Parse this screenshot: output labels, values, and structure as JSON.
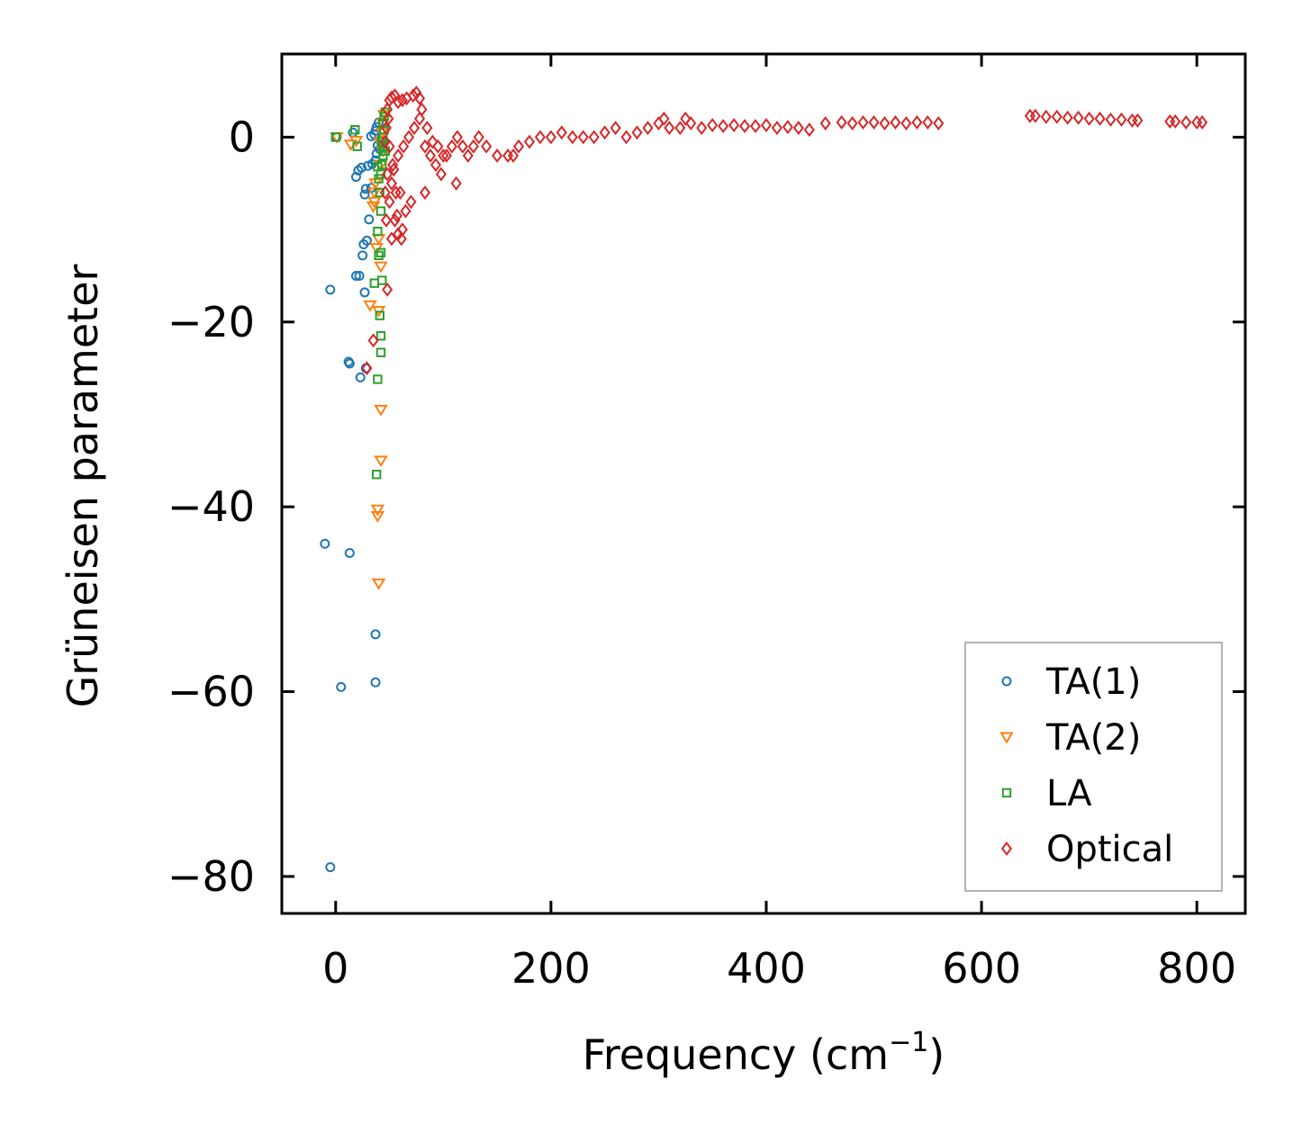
{
  "chart_data": {
    "type": "scatter",
    "title": "",
    "xlabel": "Frequency (cm",
    "xlabel_sup": "−1",
    "xlabel_suffix": ")",
    "ylabel": "Grüneisen parameter",
    "xlim": [
      -50,
      845
    ],
    "ylim": [
      -84,
      9
    ],
    "xticks": [
      0,
      200,
      400,
      600,
      800
    ],
    "xtick_labels": [
      "0",
      "200",
      "400",
      "600",
      "800"
    ],
    "yticks": [
      0,
      -20,
      -40,
      -60,
      -80
    ],
    "ytick_labels": [
      "0",
      "−20",
      "−40",
      "−60",
      "−80"
    ],
    "grid": false,
    "legend_position": "lower-right",
    "series": [
      {
        "name": "TA(1)",
        "marker": "circle",
        "color": "#1f77b4",
        "points": [
          [
            -5,
            -79
          ],
          [
            -10,
            -44
          ],
          [
            5,
            -59.5
          ],
          [
            37,
            -59
          ],
          [
            37,
            -53.8
          ],
          [
            13,
            -45
          ],
          [
            -5,
            -16.5
          ],
          [
            13,
            -24.5
          ],
          [
            12,
            -24.3
          ],
          [
            23,
            -26
          ],
          [
            28,
            -25
          ],
          [
            27,
            -16.8
          ],
          [
            19,
            -15
          ],
          [
            22,
            -15
          ],
          [
            25,
            -12.8
          ],
          [
            26,
            -11.6
          ],
          [
            29,
            -11.2
          ],
          [
            31,
            -8.9
          ],
          [
            27,
            -6.2
          ],
          [
            28,
            -5.6
          ],
          [
            33,
            -5.5
          ],
          [
            19,
            -4.3
          ],
          [
            21,
            -3.6
          ],
          [
            24,
            -3.3
          ],
          [
            30,
            -3.1
          ],
          [
            34,
            -2.9
          ],
          [
            37,
            -2.5
          ],
          [
            38,
            -1.8
          ],
          [
            39,
            -0.9
          ],
          [
            33,
            0.1
          ],
          [
            36,
            0.3
          ],
          [
            37,
            0.7
          ],
          [
            38,
            1.1
          ],
          [
            40,
            1.6
          ],
          [
            16,
            0.5
          ],
          [
            1,
            0
          ],
          [
            42,
            -0.5
          ],
          [
            41,
            -1.3
          ]
        ]
      },
      {
        "name": "TA(2)",
        "marker": "triangle-down",
        "color": "#ff7f0e",
        "points": [
          [
            1,
            0
          ],
          [
            14,
            -0.8
          ],
          [
            19,
            -0.4
          ],
          [
            35,
            -7.5
          ],
          [
            36,
            -7
          ],
          [
            32,
            -18.2
          ],
          [
            40,
            -18.8
          ],
          [
            39,
            -40.3
          ],
          [
            39,
            -41
          ],
          [
            40,
            -48.3
          ],
          [
            42,
            -29.5
          ],
          [
            42,
            -35
          ],
          [
            42,
            -14
          ],
          [
            40,
            -11
          ],
          [
            38,
            -12
          ],
          [
            36,
            -6
          ],
          [
            42,
            -3
          ],
          [
            44,
            -1.5
          ],
          [
            41,
            -0.5
          ],
          [
            43,
            0.5
          ],
          [
            44,
            1.5
          ],
          [
            45,
            2.4
          ],
          [
            37,
            -5
          ]
        ]
      },
      {
        "name": "LA",
        "marker": "square",
        "color": "#2ca02c",
        "points": [
          [
            0,
            0
          ],
          [
            18,
            0.8
          ],
          [
            20,
            -1
          ],
          [
            38,
            -36.5
          ],
          [
            39,
            -26.2
          ],
          [
            42,
            -23.3
          ],
          [
            42,
            -21.5
          ],
          [
            41,
            -19.3
          ],
          [
            36,
            -15.8
          ],
          [
            43,
            -15.5
          ],
          [
            40,
            -12.8
          ],
          [
            42,
            -12.5
          ],
          [
            39,
            -10.2
          ],
          [
            42,
            -8
          ],
          [
            41,
            -6
          ],
          [
            42,
            -4
          ],
          [
            43,
            -3
          ],
          [
            44,
            -2
          ],
          [
            44,
            -1
          ],
          [
            44,
            0
          ],
          [
            45,
            0.8
          ],
          [
            44,
            1.5
          ],
          [
            45,
            2.2
          ],
          [
            46,
            2.7
          ],
          [
            43,
            -0.5
          ],
          [
            46,
            -1.5
          ],
          [
            40,
            -4.5
          ],
          [
            39,
            -3.2
          ]
        ]
      },
      {
        "name": "Optical",
        "marker": "diamond",
        "color": "#d62728",
        "points": [
          [
            35,
            -22
          ],
          [
            29,
            -25
          ],
          [
            48,
            -16.5
          ],
          [
            52,
            -11
          ],
          [
            58,
            -10.5
          ],
          [
            62,
            -10
          ],
          [
            65,
            -8
          ],
          [
            70,
            -7
          ],
          [
            47,
            -9
          ],
          [
            55,
            -9
          ],
          [
            50,
            -7
          ],
          [
            60,
            -6
          ],
          [
            83,
            -6
          ],
          [
            112,
            -5
          ],
          [
            48,
            -4
          ],
          [
            53,
            -3
          ],
          [
            58,
            -2
          ],
          [
            63,
            -1
          ],
          [
            68,
            0
          ],
          [
            73,
            1
          ],
          [
            78,
            2
          ],
          [
            83,
            -1
          ],
          [
            88,
            -2
          ],
          [
            93,
            -3
          ],
          [
            98,
            -4
          ],
          [
            103,
            -2
          ],
          [
            108,
            -1
          ],
          [
            113,
            0
          ],
          [
            118,
            -1
          ],
          [
            123,
            -2
          ],
          [
            128,
            -1
          ],
          [
            133,
            0
          ],
          [
            140,
            -1
          ],
          [
            150,
            -2
          ],
          [
            160,
            -2
          ],
          [
            165,
            -2
          ],
          [
            170,
            -1
          ],
          [
            180,
            -0.5
          ],
          [
            190,
            0
          ],
          [
            200,
            0
          ],
          [
            210,
            0.5
          ],
          [
            220,
            0
          ],
          [
            230,
            0
          ],
          [
            240,
            0
          ],
          [
            250,
            0.5
          ],
          [
            260,
            1
          ],
          [
            270,
            0
          ],
          [
            280,
            0.5
          ],
          [
            290,
            1
          ],
          [
            300,
            1.5
          ],
          [
            305,
            2
          ],
          [
            310,
            1
          ],
          [
            320,
            1
          ],
          [
            325,
            2
          ],
          [
            330,
            1.5
          ],
          [
            340,
            1
          ],
          [
            350,
            1.3
          ],
          [
            360,
            1.2
          ],
          [
            370,
            1.3
          ],
          [
            380,
            1.2
          ],
          [
            390,
            1.2
          ],
          [
            400,
            1.3
          ],
          [
            410,
            1
          ],
          [
            420,
            1.1
          ],
          [
            430,
            1
          ],
          [
            440,
            0.8
          ],
          [
            455,
            1.5
          ],
          [
            470,
            1.6
          ],
          [
            480,
            1.5
          ],
          [
            490,
            1.6
          ],
          [
            500,
            1.6
          ],
          [
            510,
            1.5
          ],
          [
            520,
            1.6
          ],
          [
            530,
            1.5
          ],
          [
            540,
            1.6
          ],
          [
            550,
            1.6
          ],
          [
            560,
            1.5
          ],
          [
            645,
            2.3
          ],
          [
            650,
            2.3
          ],
          [
            660,
            2.2
          ],
          [
            670,
            2.2
          ],
          [
            680,
            2.1
          ],
          [
            690,
            2.1
          ],
          [
            700,
            2
          ],
          [
            710,
            2
          ],
          [
            720,
            1.9
          ],
          [
            730,
            1.9
          ],
          [
            740,
            1.8
          ],
          [
            745,
            1.8
          ],
          [
            775,
            1.7
          ],
          [
            780,
            1.7
          ],
          [
            790,
            1.6
          ],
          [
            800,
            1.6
          ],
          [
            805,
            1.6
          ],
          [
            48,
            3
          ],
          [
            50,
            4
          ],
          [
            52,
            4.3
          ],
          [
            55,
            4.5
          ],
          [
            58,
            3.8
          ],
          [
            62,
            4
          ],
          [
            66,
            4.2
          ],
          [
            72,
            4.5
          ],
          [
            75,
            4.8
          ],
          [
            78,
            4.2
          ],
          [
            80,
            3
          ],
          [
            85,
            1
          ],
          [
            90,
            -0.5
          ],
          [
            95,
            -1
          ],
          [
            100,
            -2
          ],
          [
            46,
            -6
          ],
          [
            52,
            -5
          ],
          [
            56,
            -6
          ],
          [
            46,
            -0.5
          ],
          [
            47,
            1
          ],
          [
            49,
            2
          ],
          [
            50,
            -1
          ],
          [
            54,
            -3.5
          ],
          [
            57,
            -8.5
          ],
          [
            61,
            -11
          ]
        ]
      }
    ]
  }
}
